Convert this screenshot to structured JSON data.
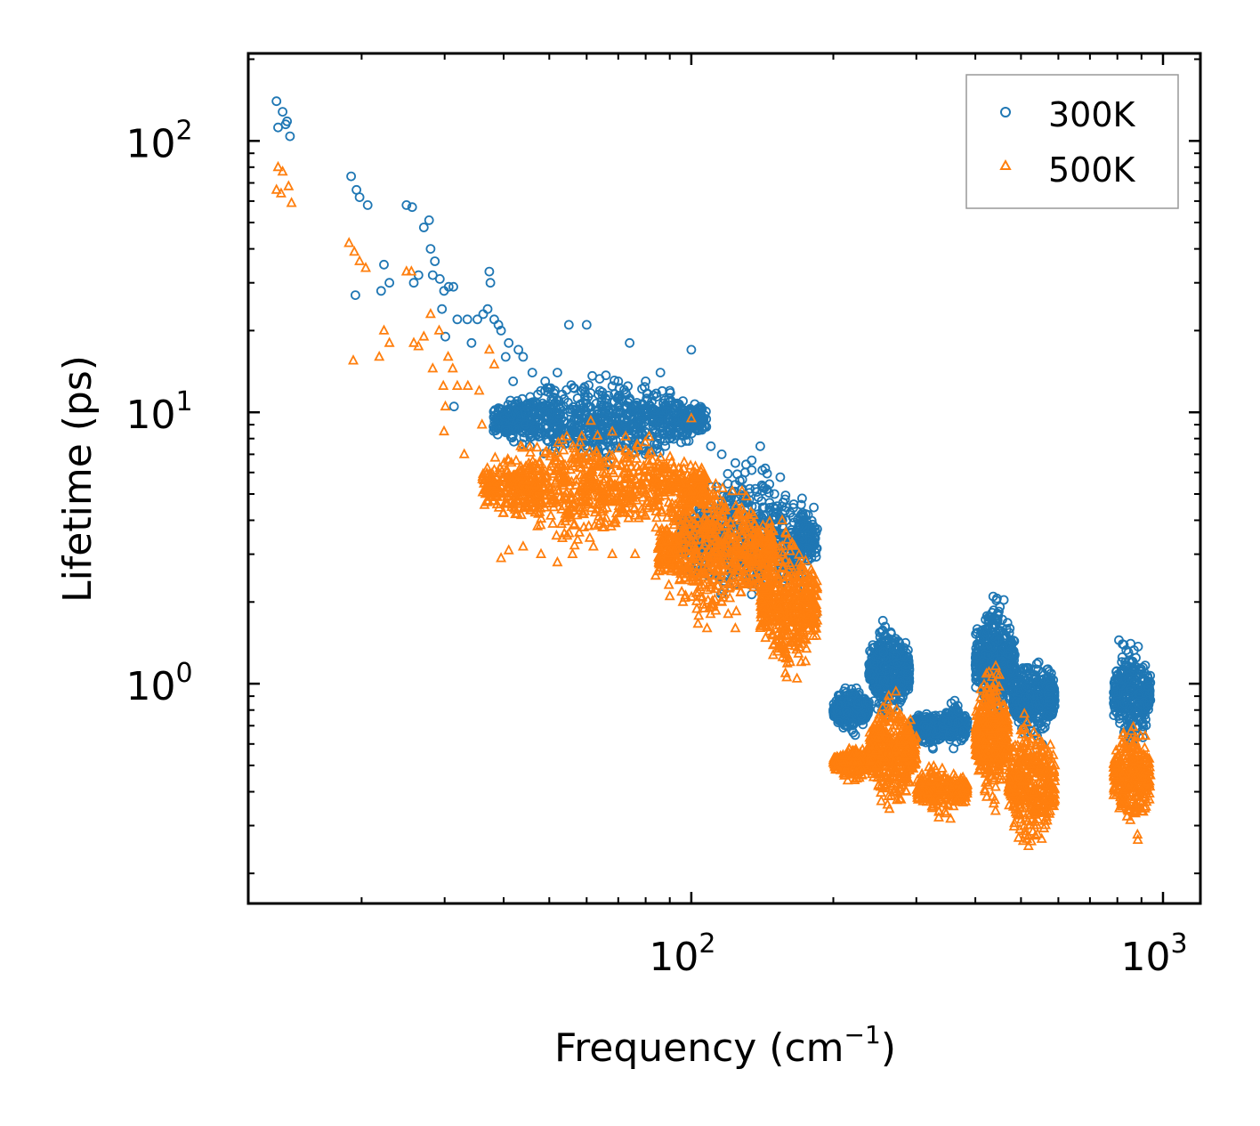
{
  "chart_data": {
    "type": "scatter",
    "title": "",
    "xlabel": "Frequency (cm",
    "xlabel_sup": "−1",
    "xlabel_close": ")",
    "ylabel": "Lifetime (ps)",
    "xscale": "log",
    "yscale": "log",
    "xlim": [
      11.5,
      1200
    ],
    "ylim": [
      0.155,
      210
    ],
    "x_ticks": [
      {
        "base": "10",
        "exp": "2",
        "value": 100
      },
      {
        "base": "10",
        "exp": "3",
        "value": 1000
      }
    ],
    "y_ticks": [
      {
        "base": "10",
        "exp": "0",
        "value": 1
      },
      {
        "base": "10",
        "exp": "1",
        "value": 10
      },
      {
        "base": "10",
        "exp": "2",
        "value": 100
      }
    ],
    "legend_position": "top-right",
    "series": [
      {
        "name": "300K",
        "marker": "circle",
        "color": "#1f77b4",
        "points": [
          [
            13.2,
            140
          ],
          [
            13.6,
            128
          ],
          [
            13.9,
            118
          ],
          [
            13.3,
            112
          ],
          [
            13.8,
            115
          ],
          [
            14.1,
            104
          ],
          [
            19.0,
            74
          ],
          [
            19.5,
            66
          ],
          [
            19.8,
            62
          ],
          [
            20.6,
            58
          ],
          [
            19.4,
            27
          ],
          [
            22.3,
            35
          ],
          [
            22.0,
            28
          ],
          [
            22.9,
            30
          ],
          [
            24.9,
            58
          ],
          [
            25.6,
            57
          ],
          [
            26.4,
            32
          ],
          [
            25.8,
            30
          ],
          [
            27.1,
            48
          ],
          [
            27.8,
            51
          ],
          [
            28.0,
            40
          ],
          [
            28.6,
            36
          ],
          [
            28.3,
            32
          ],
          [
            29.3,
            31
          ],
          [
            29.9,
            28
          ],
          [
            29.6,
            24
          ],
          [
            30.1,
            19
          ],
          [
            30.6,
            29
          ],
          [
            31.3,
            29
          ],
          [
            31.9,
            22
          ],
          [
            31.4,
            10.5
          ],
          [
            33.5,
            22
          ],
          [
            34.2,
            18
          ],
          [
            35.2,
            22
          ],
          [
            36.2,
            23
          ],
          [
            37.0,
            24
          ],
          [
            37.3,
            33
          ],
          [
            37.5,
            30
          ],
          [
            38.2,
            22
          ],
          [
            39.0,
            21
          ],
          [
            39.5,
            20
          ],
          [
            40.4,
            16
          ],
          [
            41.0,
            18
          ],
          [
            41.9,
            13
          ],
          [
            43.0,
            17
          ],
          [
            44.0,
            16
          ],
          [
            46.0,
            14
          ],
          [
            49.0,
            13
          ],
          [
            52.0,
            14
          ],
          [
            55.0,
            21
          ],
          [
            60.0,
            21
          ],
          [
            64.0,
            12
          ],
          [
            70.0,
            13
          ],
          [
            74.0,
            18
          ],
          [
            80.0,
            13
          ],
          [
            86.0,
            14
          ],
          [
            90.0,
            12
          ],
          [
            96.0,
            11
          ],
          [
            100.0,
            17
          ],
          [
            104.0,
            10
          ],
          [
            110.0,
            7.5
          ],
          [
            116.0,
            7
          ],
          [
            124.0,
            6.5
          ],
          [
            130.0,
            6
          ],
          [
            140.0,
            7.5
          ],
          [
            150.0,
            5
          ],
          [
            156.0,
            4
          ],
          [
            162.0,
            3.5
          ],
          [
            170.0,
            3.5
          ],
          [
            176.0,
            2.5
          ],
          [
            180.0,
            2
          ],
          [
            184.0,
            1.8
          ]
        ],
        "clusters": [
          {
            "x": [
              38,
              108
            ],
            "y": [
              6,
              14.5
            ],
            "n": 900
          },
          {
            "x": [
              95,
              185
            ],
            "y": [
              1.6,
              7.5
            ],
            "n": 700
          },
          {
            "x": [
              200,
              238
            ],
            "y": [
              0.62,
              1.05
            ],
            "n": 260
          },
          {
            "x": [
              238,
              290
            ],
            "y": [
              0.65,
              1.9
            ],
            "n": 420
          },
          {
            "x": [
              290,
              345
            ],
            "y": [
              0.55,
              0.85
            ],
            "n": 200
          },
          {
            "x": [
              340,
              385
            ],
            "y": [
              0.55,
              0.9
            ],
            "n": 160
          },
          {
            "x": [
              400,
              485
            ],
            "y": [
              0.6,
              2.45
            ],
            "n": 480
          },
          {
            "x": [
              480,
              590
            ],
            "y": [
              0.55,
              1.4
            ],
            "n": 380
          },
          {
            "x": [
              785,
              940
            ],
            "y": [
              0.45,
              1.9
            ],
            "n": 300
          }
        ]
      },
      {
        "name": "500K",
        "marker": "triangle",
        "color": "#ff7f0e",
        "points": [
          [
            13.3,
            80
          ],
          [
            13.6,
            77
          ],
          [
            13.2,
            66
          ],
          [
            13.5,
            64
          ],
          [
            14.0,
            68
          ],
          [
            14.2,
            59
          ],
          [
            18.8,
            42
          ],
          [
            19.3,
            39
          ],
          [
            19.8,
            36
          ],
          [
            20.4,
            34
          ],
          [
            19.2,
            15.5
          ],
          [
            22.3,
            20
          ],
          [
            21.8,
            16
          ],
          [
            22.9,
            18
          ],
          [
            24.9,
            33
          ],
          [
            25.5,
            33
          ],
          [
            25.8,
            18
          ],
          [
            26.4,
            17.5
          ],
          [
            27.1,
            19
          ],
          [
            28.0,
            23
          ],
          [
            28.3,
            14.5
          ],
          [
            29.2,
            20
          ],
          [
            29.8,
            12.5
          ],
          [
            30.5,
            16
          ],
          [
            31.2,
            14.5
          ],
          [
            31.9,
            12.5
          ],
          [
            30.1,
            10.5
          ],
          [
            29.9,
            8.5
          ],
          [
            33.0,
            7
          ],
          [
            33.6,
            12.5
          ],
          [
            35.5,
            12
          ],
          [
            36.0,
            9
          ],
          [
            37.0,
            5.5
          ],
          [
            37.3,
            17
          ],
          [
            38.2,
            15
          ],
          [
            39.5,
            2.9
          ],
          [
            41.0,
            3.1
          ],
          [
            44.0,
            3.2
          ],
          [
            48.0,
            3.0
          ],
          [
            52.0,
            2.8
          ],
          [
            56.0,
            3.0
          ],
          [
            62.0,
            3.2
          ],
          [
            68.0,
            3.0
          ],
          [
            76.0,
            3.0
          ],
          [
            84.0,
            2.5
          ],
          [
            90.0,
            2.1
          ],
          [
            96.0,
            2.0
          ],
          [
            100.0,
            9.5
          ],
          [
            108.0,
            1.6
          ],
          [
            116.0,
            2.0
          ],
          [
            124.0,
            1.6
          ],
          [
            134.0,
            2.8
          ],
          [
            150.0,
            1.4
          ],
          [
            160.0,
            2.0
          ],
          [
            176.0,
            1.6
          ],
          [
            184.0,
            1.5
          ]
        ],
        "clusters": [
          {
            "x": [
              36,
              108
            ],
            "y": [
              3.0,
              9.5
            ],
            "n": 900
          },
          {
            "x": [
              85,
              150
            ],
            "y": [
              1.5,
              6.5
            ],
            "n": 650
          },
          {
            "x": [
              140,
              185
            ],
            "y": [
              0.85,
              4.5
            ],
            "n": 450
          },
          {
            "x": [
              200,
              238
            ],
            "y": [
              0.42,
              0.62
            ],
            "n": 200
          },
          {
            "x": [
              238,
              300
            ],
            "y": [
              0.3,
              1.05
            ],
            "n": 400
          },
          {
            "x": [
              300,
              385
            ],
            "y": [
              0.3,
              0.55
            ],
            "n": 230
          },
          {
            "x": [
              400,
              470
            ],
            "y": [
              0.3,
              1.4
            ],
            "n": 380
          },
          {
            "x": [
              470,
              590
            ],
            "y": [
              0.2,
              0.9
            ],
            "n": 380
          },
          {
            "x": [
              785,
              940
            ],
            "y": [
              0.23,
              0.9
            ],
            "n": 280
          }
        ]
      }
    ]
  }
}
